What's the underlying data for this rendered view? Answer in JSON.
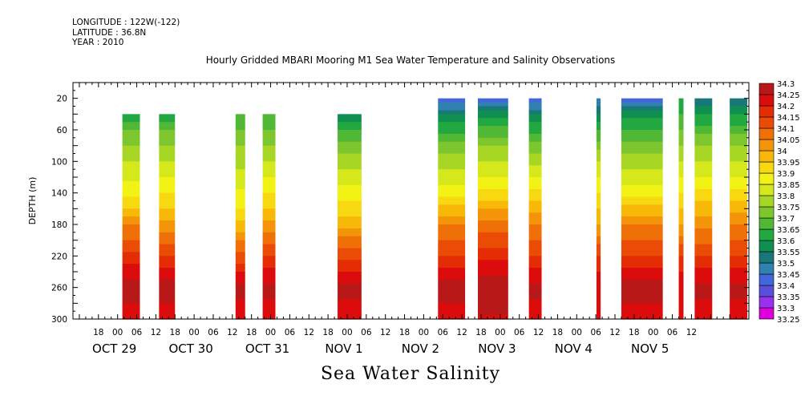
{
  "meta": {
    "longitude": "LONGITUDE : 122W(-122)",
    "latitude": "LATITUDE : 36.8N",
    "year": "YEAR : 2010"
  },
  "chart_data": {
    "type": "heatmap",
    "title": "Hourly Gridded MBARI Mooring M1 Sea Water Temperature and Salinity Observations",
    "variable_label": "Sea Water Salinity",
    "ylabel": "DEPTH (m)",
    "yaxis_inverted": true,
    "ylim": [
      0,
      300
    ],
    "y_ticks": [
      20,
      60,
      100,
      140,
      180,
      220,
      260,
      300
    ],
    "xlim_hours": [
      -14,
      198
    ],
    "x_origin": "OCT 29 2010 00:00",
    "x_hour_ticks": [
      "18",
      "00",
      "06",
      "12",
      "18",
      "00",
      "06",
      "12",
      "18",
      "00",
      "06",
      "12",
      "18",
      "00",
      "06",
      "12",
      "18",
      "00",
      "06",
      "12",
      "18",
      "00",
      "06",
      "12",
      "18",
      "00",
      "06",
      "12",
      "18",
      "00",
      "06",
      "12"
    ],
    "x_day_labels": [
      "OCT 29",
      "OCT 30",
      "OCT 31",
      "NOV  1",
      "NOV  2",
      "NOV  3",
      "NOV  4",
      "NOV  5"
    ],
    "levels": [
      33.25,
      33.3,
      33.35,
      33.4,
      33.45,
      33.5,
      33.55,
      33.6,
      33.65,
      33.7,
      33.75,
      33.8,
      33.85,
      33.9,
      33.95,
      34.0,
      34.05,
      34.1,
      34.15,
      34.2,
      34.25,
      34.3
    ],
    "level_colors": [
      "#dd00dd",
      "#9b30ef",
      "#5a4fd8",
      "#4466dd",
      "#3080b0",
      "#187878",
      "#109050",
      "#22a840",
      "#50b835",
      "#7dc62e",
      "#a8d625",
      "#d4e81c",
      "#f2f214",
      "#f8d810",
      "#f8b808",
      "#f49408",
      "#f07008",
      "#ea4c05",
      "#e42c05",
      "#dc0c0c",
      "#b81818",
      "#8c0000"
    ],
    "data_columns": [
      {
        "start": 1.5,
        "end": 7,
        "top_depth": 40,
        "profile": [
          [
            40,
            33.6
          ],
          [
            60,
            33.7
          ],
          [
            100,
            33.8
          ],
          [
            140,
            33.88
          ],
          [
            160,
            33.95
          ],
          [
            180,
            34.05
          ],
          [
            200,
            34.1
          ],
          [
            230,
            34.2
          ],
          [
            260,
            34.28
          ],
          [
            300,
            34.22
          ]
        ]
      },
      {
        "start": 13,
        "end": 18,
        "top_depth": 40,
        "profile": [
          [
            40,
            33.6
          ],
          [
            60,
            33.7
          ],
          [
            100,
            33.8
          ],
          [
            140,
            33.9
          ],
          [
            170,
            33.98
          ],
          [
            190,
            34.05
          ],
          [
            210,
            34.12
          ],
          [
            240,
            34.22
          ],
          [
            260,
            34.28
          ],
          [
            300,
            34.22
          ]
        ]
      },
      {
        "start": 37,
        "end": 40,
        "top_depth": 40,
        "profile": [
          [
            40,
            33.65
          ],
          [
            80,
            33.75
          ],
          [
            120,
            33.82
          ],
          [
            160,
            33.9
          ],
          [
            190,
            34.0
          ],
          [
            220,
            34.12
          ],
          [
            260,
            34.27
          ],
          [
            300,
            34.22
          ]
        ]
      },
      {
        "start": 45.5,
        "end": 49.5,
        "top_depth": 40,
        "profile": [
          [
            40,
            33.65
          ],
          [
            80,
            33.75
          ],
          [
            120,
            33.85
          ],
          [
            160,
            33.95
          ],
          [
            190,
            34.05
          ],
          [
            220,
            34.15
          ],
          [
            260,
            34.27
          ],
          [
            300,
            34.22
          ]
        ]
      },
      {
        "start": 69,
        "end": 76.5,
        "top_depth": 40,
        "profile": [
          [
            40,
            33.55
          ],
          [
            60,
            33.65
          ],
          [
            100,
            33.78
          ],
          [
            140,
            33.88
          ],
          [
            180,
            33.98
          ],
          [
            210,
            34.1
          ],
          [
            240,
            34.2
          ],
          [
            260,
            34.27
          ],
          [
            300,
            34.22
          ]
        ]
      },
      {
        "start": 100.5,
        "end": 109,
        "top_depth": 20,
        "profile": [
          [
            20,
            33.4
          ],
          [
            40,
            33.55
          ],
          [
            80,
            33.72
          ],
          [
            120,
            33.82
          ],
          [
            150,
            33.92
          ],
          [
            180,
            34.05
          ],
          [
            220,
            34.15
          ],
          [
            260,
            34.28
          ],
          [
            300,
            34.22
          ]
        ]
      },
      {
        "start": 113,
        "end": 122.5,
        "top_depth": 20,
        "profile": [
          [
            20,
            33.42
          ],
          [
            40,
            33.58
          ],
          [
            80,
            33.75
          ],
          [
            120,
            33.85
          ],
          [
            150,
            33.95
          ],
          [
            180,
            34.08
          ],
          [
            220,
            34.18
          ],
          [
            260,
            34.3
          ],
          [
            300,
            34.24
          ]
        ]
      },
      {
        "start": 129,
        "end": 133,
        "top_depth": 20,
        "profile": [
          [
            20,
            33.4
          ],
          [
            40,
            33.55
          ],
          [
            80,
            33.72
          ],
          [
            120,
            33.85
          ],
          [
            150,
            33.95
          ],
          [
            180,
            34.05
          ],
          [
            220,
            34.15
          ],
          [
            260,
            34.27
          ],
          [
            300,
            34.22
          ]
        ]
      },
      {
        "start": 150.2,
        "end": 151.5,
        "top_depth": 20,
        "profile": [
          [
            20,
            33.45
          ],
          [
            60,
            33.65
          ],
          [
            100,
            33.8
          ],
          [
            140,
            33.9
          ],
          [
            180,
            34.0
          ],
          [
            220,
            34.15
          ],
          [
            260,
            34.25
          ],
          [
            300,
            34.22
          ]
        ]
      },
      {
        "start": 158,
        "end": 171,
        "top_depth": 20,
        "profile": [
          [
            20,
            33.42
          ],
          [
            40,
            33.58
          ],
          [
            80,
            33.72
          ],
          [
            120,
            33.82
          ],
          [
            150,
            33.92
          ],
          [
            180,
            34.05
          ],
          [
            220,
            34.15
          ],
          [
            260,
            34.28
          ],
          [
            300,
            34.22
          ]
        ]
      },
      {
        "start": 176,
        "end": 177.5,
        "top_depth": 20,
        "profile": [
          [
            20,
            33.6
          ],
          [
            60,
            33.7
          ],
          [
            100,
            33.8
          ],
          [
            140,
            33.9
          ],
          [
            180,
            34.0
          ],
          [
            220,
            34.15
          ],
          [
            260,
            34.25
          ],
          [
            300,
            34.22
          ]
        ]
      },
      {
        "start": 181,
        "end": 186.5,
        "top_depth": 20,
        "profile": [
          [
            20,
            33.5
          ],
          [
            40,
            33.6
          ],
          [
            80,
            33.75
          ],
          [
            120,
            33.85
          ],
          [
            150,
            33.95
          ],
          [
            180,
            34.03
          ],
          [
            220,
            34.15
          ],
          [
            260,
            34.27
          ],
          [
            300,
            34.22
          ]
        ]
      },
      {
        "start": 192,
        "end": 197.5,
        "top_depth": 20,
        "profile": [
          [
            20,
            33.5
          ],
          [
            40,
            33.6
          ],
          [
            80,
            33.75
          ],
          [
            120,
            33.85
          ],
          [
            150,
            33.95
          ],
          [
            180,
            34.05
          ],
          [
            220,
            34.15
          ],
          [
            260,
            34.27
          ],
          [
            300,
            34.22
          ]
        ]
      }
    ]
  }
}
